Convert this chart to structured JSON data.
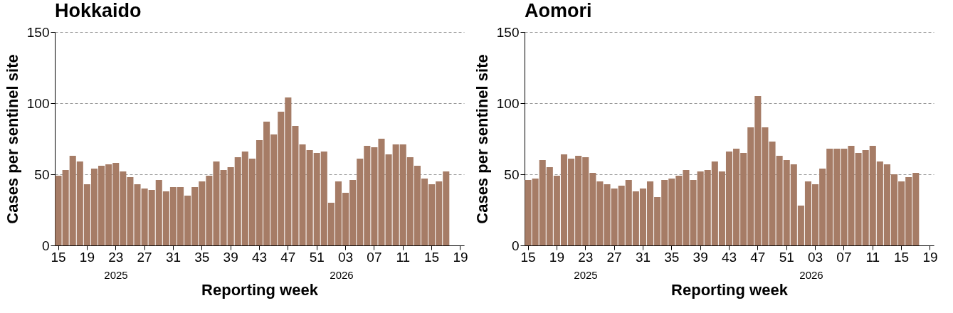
{
  "chart_data": [
    {
      "type": "bar",
      "title": "Hokkaido",
      "xlabel": "Reporting week",
      "ylabel": "Cases per sentinel site",
      "color": "#a67c66",
      "grid": "y",
      "ylim": [
        0,
        150
      ],
      "yticks": [
        0,
        50,
        100,
        150
      ],
      "annotations": [
        "2025",
        "2026"
      ],
      "categories": [
        "15",
        null,
        null,
        null,
        "19",
        null,
        null,
        null,
        "23",
        null,
        null,
        null,
        "27",
        null,
        null,
        null,
        "31",
        null,
        null,
        null,
        "35",
        null,
        null,
        null,
        "39",
        null,
        null,
        null,
        "43",
        null,
        null,
        null,
        "47",
        null,
        null,
        null,
        "51",
        null,
        null,
        null,
        "03",
        null,
        null,
        null,
        "07",
        null,
        null,
        null,
        "11",
        null,
        null,
        null,
        "15",
        null,
        null,
        null,
        "19"
      ],
      "values": [
        49,
        53,
        63,
        59,
        43,
        54,
        56,
        57,
        58,
        52,
        48,
        43,
        40,
        39,
        46,
        38,
        41,
        41,
        35,
        41,
        45,
        49,
        59,
        53,
        55,
        62,
        66,
        61,
        74,
        87,
        78,
        94,
        104,
        84,
        71,
        67,
        65,
        66,
        30,
        45,
        37,
        46,
        61,
        70,
        69,
        75,
        64,
        71,
        71,
        62,
        56,
        47,
        43,
        45,
        52,
        null,
        null
      ]
    },
    {
      "type": "bar",
      "title": "Aomori",
      "xlabel": "Reporting week",
      "ylabel": "Cases per sentinel site",
      "color": "#a67c66",
      "grid": "y",
      "ylim": [
        0,
        150
      ],
      "yticks": [
        0,
        50,
        100,
        150
      ],
      "annotations": [
        "2025",
        "2026"
      ],
      "categories": [
        "15",
        null,
        null,
        null,
        "19",
        null,
        null,
        null,
        "23",
        null,
        null,
        null,
        "27",
        null,
        null,
        null,
        "31",
        null,
        null,
        null,
        "35",
        null,
        null,
        null,
        "39",
        null,
        null,
        null,
        "43",
        null,
        null,
        null,
        "47",
        null,
        null,
        null,
        "51",
        null,
        null,
        null,
        "03",
        null,
        null,
        null,
        "07",
        null,
        null,
        null,
        "11",
        null,
        null,
        null,
        "15",
        null,
        null,
        null,
        "19"
      ],
      "values": [
        46,
        47,
        60,
        55,
        49,
        64,
        61,
        63,
        62,
        51,
        45,
        43,
        40,
        42,
        46,
        38,
        40,
        45,
        34,
        46,
        47,
        49,
        53,
        46,
        52,
        53,
        59,
        52,
        66,
        68,
        65,
        83,
        105,
        83,
        73,
        63,
        60,
        57,
        28,
        45,
        43,
        54,
        68,
        68,
        68,
        70,
        65,
        67,
        70,
        59,
        57,
        50,
        45,
        48,
        51,
        null,
        null
      ]
    }
  ]
}
